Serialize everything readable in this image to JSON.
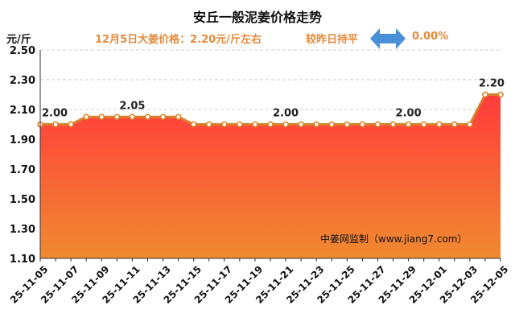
{
  "header": {
    "title": "安丘一般泥姜价格走势",
    "price_text": "12月5日大姜价格：2.20元/斤左右",
    "change_text": "较昨日持平",
    "change_pct": "0.00%",
    "unit": "元/斤",
    "arrow_icon": "left-right-arrow-icon",
    "accent_color": "#e68a3a",
    "arrow_color": "#4a90d9"
  },
  "watermark": "中姜网监制（www.jiang7.com）",
  "chart_data": {
    "type": "area",
    "title": "安丘一般泥姜价格走势",
    "ylabel": "元/斤",
    "ylim": [
      1.1,
      2.5
    ],
    "yticks": [
      "1.10",
      "1.30",
      "1.50",
      "1.70",
      "1.90",
      "2.10",
      "2.30",
      "2.50"
    ],
    "x": [
      "25-11-05",
      "25-11-06",
      "25-11-07",
      "25-11-08",
      "25-11-09",
      "25-11-10",
      "25-11-11",
      "25-11-12",
      "25-11-13",
      "25-11-14",
      "25-11-15",
      "25-11-16",
      "25-11-17",
      "25-11-18",
      "25-11-19",
      "25-11-20",
      "25-11-21",
      "25-11-22",
      "25-11-23",
      "25-11-24",
      "25-11-25",
      "25-11-26",
      "25-11-27",
      "25-11-28",
      "25-11-29",
      "25-11-30",
      "25-12-01",
      "25-12-02",
      "25-12-03",
      "25-12-04",
      "25-12-05"
    ],
    "xtick_labels": [
      "25-11-05",
      "25-11-07",
      "25-11-09",
      "25-11-11",
      "25-11-13",
      "25-11-15",
      "25-11-17",
      "25-11-19",
      "25-11-21",
      "25-11-23",
      "25-11-25",
      "25-11-27",
      "25-11-29",
      "25-12-01",
      "25-12-03",
      "25-12-05"
    ],
    "values": [
      2.0,
      2.0,
      2.0,
      2.05,
      2.05,
      2.05,
      2.05,
      2.05,
      2.05,
      2.05,
      2.0,
      2.0,
      2.0,
      2.0,
      2.0,
      2.0,
      2.0,
      2.0,
      2.0,
      2.0,
      2.0,
      2.0,
      2.0,
      2.0,
      2.0,
      2.0,
      2.0,
      2.0,
      2.0,
      2.2,
      2.2
    ],
    "data_labels": [
      {
        "index": 0,
        "text": "2.00"
      },
      {
        "index": 6,
        "text": "2.05"
      },
      {
        "index": 16,
        "text": "2.00"
      },
      {
        "index": 24,
        "text": "2.00"
      },
      {
        "index": 29,
        "text": "2.20"
      }
    ],
    "colors": {
      "line": "#d9822b",
      "fill_top": "#ff3b3b",
      "fill_bottom": "#f08a30"
    },
    "grid": true
  }
}
